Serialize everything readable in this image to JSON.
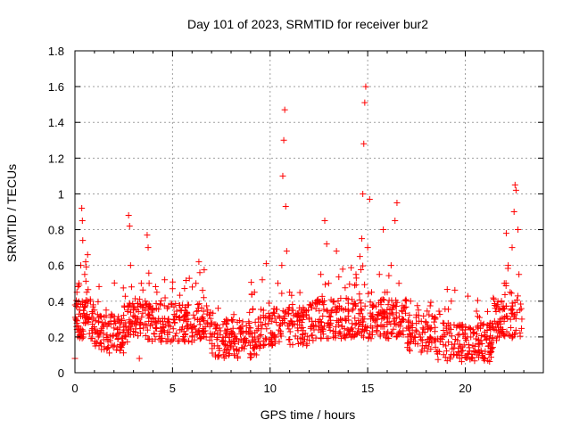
{
  "chart_data": {
    "type": "scatter",
    "title": "Day 101 of 2023, SRMTID for receiver bur2",
    "xlabel": "GPS time / hours",
    "ylabel": "SRMTID / TECUs",
    "xlim": [
      0,
      24
    ],
    "ylim": [
      0,
      1.8
    ],
    "x_ticks": [
      0,
      5,
      10,
      15,
      20
    ],
    "x_tick_labels": [
      "0",
      "5",
      "10",
      "15",
      "20"
    ],
    "y_ticks": [
      0,
      0.2,
      0.4,
      0.6,
      0.8,
      1,
      1.2,
      1.4,
      1.6,
      1.8
    ],
    "y_tick_labels": [
      "0",
      "0.2",
      "0.4",
      "0.6",
      "0.8",
      "1",
      "1.2",
      "1.4",
      "1.6",
      "1.8"
    ],
    "grid": true,
    "marker": "plus",
    "marker_color": "#ff0000",
    "x_data_end": 22.9,
    "series": [
      {
        "name": "SRMTID",
        "points": [
          [
            0.0,
            0.08
          ],
          [
            0.05,
            0.3
          ],
          [
            0.1,
            0.45
          ],
          [
            0.15,
            0.2
          ],
          [
            0.2,
            0.5
          ],
          [
            0.25,
            0.35
          ],
          [
            0.3,
            0.6
          ],
          [
            0.35,
            0.92
          ],
          [
            0.38,
            0.85
          ],
          [
            0.4,
            0.74
          ],
          [
            0.45,
            0.28
          ],
          [
            0.5,
            0.55
          ],
          [
            0.55,
            0.62
          ],
          [
            0.6,
            0.45
          ],
          [
            0.65,
            0.66
          ],
          [
            0.7,
            0.3
          ],
          [
            0.8,
            0.4
          ],
          [
            0.9,
            0.22
          ],
          [
            1.0,
            0.35
          ],
          [
            1.2,
            0.2
          ],
          [
            1.4,
            0.28
          ],
          [
            1.5,
            0.13
          ],
          [
            1.6,
            0.32
          ],
          [
            1.8,
            0.18
          ],
          [
            2.0,
            0.25
          ],
          [
            2.2,
            0.22
          ],
          [
            2.4,
            0.3
          ],
          [
            2.6,
            0.26
          ],
          [
            2.75,
            0.88
          ],
          [
            2.8,
            0.82
          ],
          [
            2.85,
            0.6
          ],
          [
            2.9,
            0.48
          ],
          [
            3.0,
            0.35
          ],
          [
            3.2,
            0.3
          ],
          [
            3.3,
            0.08
          ],
          [
            3.4,
            0.5
          ],
          [
            3.5,
            0.25
          ],
          [
            3.6,
            0.4
          ],
          [
            3.7,
            0.77
          ],
          [
            3.75,
            0.7
          ],
          [
            3.8,
            0.5
          ],
          [
            4.0,
            0.3
          ],
          [
            4.2,
            0.45
          ],
          [
            4.4,
            0.25
          ],
          [
            4.6,
            0.52
          ],
          [
            4.8,
            0.3
          ],
          [
            5.0,
            0.47
          ],
          [
            5.2,
            0.22
          ],
          [
            5.4,
            0.35
          ],
          [
            5.6,
            0.18
          ],
          [
            5.8,
            0.3
          ],
          [
            6.0,
            0.2
          ],
          [
            6.2,
            0.5
          ],
          [
            6.35,
            0.62
          ],
          [
            6.4,
            0.56
          ],
          [
            6.5,
            0.3
          ],
          [
            6.6,
            0.42
          ],
          [
            6.8,
            0.35
          ],
          [
            7.0,
            0.2
          ],
          [
            7.2,
            0.1
          ],
          [
            7.4,
            0.25
          ],
          [
            7.6,
            0.18
          ],
          [
            7.8,
            0.22
          ],
          [
            8.0,
            0.15
          ],
          [
            8.2,
            0.2
          ],
          [
            8.4,
            0.12
          ],
          [
            8.6,
            0.22
          ],
          [
            8.8,
            0.18
          ],
          [
            9.0,
            0.25
          ],
          [
            9.2,
            0.45
          ],
          [
            9.4,
            0.3
          ],
          [
            9.6,
            0.52
          ],
          [
            9.8,
            0.61
          ],
          [
            10.0,
            0.3
          ],
          [
            10.2,
            0.2
          ],
          [
            10.4,
            0.5
          ],
          [
            10.6,
            0.6
          ],
          [
            10.65,
            1.1
          ],
          [
            10.7,
            1.3
          ],
          [
            10.75,
            1.47
          ],
          [
            10.8,
            0.93
          ],
          [
            10.85,
            0.68
          ],
          [
            11.0,
            0.45
          ],
          [
            11.2,
            0.32
          ],
          [
            11.4,
            0.25
          ],
          [
            11.6,
            0.35
          ],
          [
            11.8,
            0.22
          ],
          [
            12.0,
            0.3
          ],
          [
            12.2,
            0.18
          ],
          [
            12.4,
            0.4
          ],
          [
            12.6,
            0.55
          ],
          [
            12.8,
            0.85
          ],
          [
            12.9,
            0.72
          ],
          [
            13.0,
            0.5
          ],
          [
            13.2,
            0.35
          ],
          [
            13.4,
            0.68
          ],
          [
            13.6,
            0.3
          ],
          [
            13.8,
            0.2
          ],
          [
            14.0,
            0.35
          ],
          [
            14.2,
            0.25
          ],
          [
            14.4,
            0.55
          ],
          [
            14.6,
            0.65
          ],
          [
            14.7,
            0.75
          ],
          [
            14.75,
            1.0
          ],
          [
            14.8,
            1.28
          ],
          [
            14.85,
            1.51
          ],
          [
            14.9,
            1.6
          ],
          [
            15.0,
            0.7
          ],
          [
            15.1,
            0.97
          ],
          [
            15.2,
            0.45
          ],
          [
            15.4,
            0.3
          ],
          [
            15.6,
            0.55
          ],
          [
            15.8,
            0.8
          ],
          [
            16.0,
            0.45
          ],
          [
            16.2,
            0.6
          ],
          [
            16.4,
            0.85
          ],
          [
            16.5,
            0.95
          ],
          [
            16.6,
            0.5
          ],
          [
            16.8,
            0.3
          ],
          [
            17.0,
            0.25
          ],
          [
            17.2,
            0.4
          ],
          [
            17.4,
            0.2
          ],
          [
            17.6,
            0.35
          ],
          [
            17.8,
            0.15
          ],
          [
            18.0,
            0.28
          ],
          [
            18.2,
            0.2
          ],
          [
            18.4,
            0.3
          ],
          [
            18.6,
            0.12
          ],
          [
            18.8,
            0.2
          ],
          [
            19.0,
            0.15
          ],
          [
            19.2,
            0.22
          ],
          [
            19.4,
            0.1
          ],
          [
            19.6,
            0.18
          ],
          [
            19.8,
            0.12
          ],
          [
            20.0,
            0.2
          ],
          [
            20.2,
            0.14
          ],
          [
            20.4,
            0.22
          ],
          [
            20.6,
            0.1
          ],
          [
            20.8,
            0.18
          ],
          [
            21.0,
            0.2
          ],
          [
            21.2,
            0.15
          ],
          [
            21.4,
            0.25
          ],
          [
            21.6,
            0.18
          ],
          [
            21.8,
            0.3
          ],
          [
            22.0,
            0.5
          ],
          [
            22.1,
            0.78
          ],
          [
            22.2,
            0.6
          ],
          [
            22.3,
            0.45
          ],
          [
            22.4,
            0.7
          ],
          [
            22.5,
            0.9
          ],
          [
            22.55,
            1.05
          ],
          [
            22.6,
            1.02
          ],
          [
            22.7,
            0.8
          ],
          [
            22.75,
            0.55
          ],
          [
            22.8,
            0.35
          ],
          [
            22.9,
            0.3
          ]
        ]
      }
    ]
  }
}
